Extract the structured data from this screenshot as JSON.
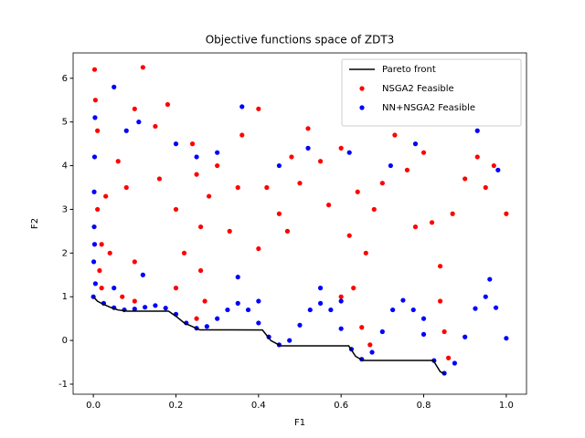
{
  "chart_data": {
    "type": "scatter",
    "title": "Objective functions space of ZDT3",
    "x_label": "F1",
    "y_label": "F2",
    "xlim": [
      -0.049,
      1.049
    ],
    "ylim": [
      -1.23,
      6.58
    ],
    "xticks": [
      {
        "value": 0,
        "label": "0.0"
      },
      0.2,
      0.4,
      0.6,
      0.8,
      {
        "value": 1,
        "label": "1.0"
      }
    ],
    "yticks": [
      -1,
      0,
      1,
      2,
      3,
      4,
      5,
      6
    ],
    "legend": "upper right",
    "line": {
      "name": "Pareto front",
      "color": "#000000",
      "x": [
        0,
        0.01,
        0.02,
        0.04,
        0.06,
        0.083,
        0.1822,
        0.2,
        0.22,
        0.2578,
        0.4094,
        0.43,
        0.4539,
        0.6184,
        0.635,
        0.6525,
        0.8233,
        0.84,
        0.8518
      ],
      "y": [
        1,
        0.897,
        0.847,
        0.762,
        0.698,
        0.67,
        0.67,
        0.553,
        0.402,
        0.242,
        0.241,
        -0.004,
        -0.124,
        -0.124,
        -0.363,
        -0.458,
        -0.457,
        -0.715,
        -0.773
      ]
    },
    "series": [
      {
        "name": "NSGA2 Feasible",
        "color": "#ff0000",
        "x": [
          0.003,
          0.005,
          0.01,
          0.01,
          0.02,
          0.015,
          0.03,
          0.04,
          0.06,
          0.08,
          0.1,
          0.12,
          0.1,
          0.15,
          0.18,
          0.2,
          0.22,
          0.24,
          0.25,
          0.26,
          0.26,
          0.27,
          0.25,
          0.28,
          0.2,
          0.3,
          0.33,
          0.36,
          0.4,
          0.42,
          0.45,
          0.48,
          0.5,
          0.52,
          0.55,
          0.57,
          0.6,
          0.62,
          0.63,
          0.65,
          0.66,
          0.64,
          0.67,
          0.7,
          0.73,
          0.76,
          0.78,
          0.8,
          0.82,
          0.84,
          0.85,
          0.86,
          0.87,
          0.9,
          0.93,
          0.95,
          0.97,
          1.0,
          0.84,
          0.6,
          0.4,
          0.16,
          0.35,
          0.02,
          0.07,
          0.1,
          0.47,
          0.68
        ],
        "y": [
          6.2,
          5.5,
          4.8,
          3.0,
          2.2,
          1.6,
          3.3,
          2.0,
          4.1,
          3.5,
          1.8,
          6.25,
          5.3,
          4.9,
          5.4,
          3.0,
          2.0,
          4.5,
          3.8,
          2.6,
          1.6,
          0.9,
          0.5,
          3.3,
          1.2,
          4.0,
          2.5,
          4.7,
          5.3,
          3.5,
          2.9,
          4.2,
          3.6,
          4.85,
          4.1,
          3.1,
          4.4,
          2.4,
          1.2,
          0.3,
          2.0,
          3.4,
          -0.1,
          3.6,
          4.7,
          3.9,
          2.6,
          4.3,
          2.7,
          1.7,
          0.2,
          -0.4,
          2.9,
          3.7,
          4.2,
          3.5,
          4.0,
          2.9,
          0.9,
          1.0,
          2.1,
          3.7,
          3.5,
          1.2,
          1.0,
          0.9,
          2.5,
          3.0
        ]
      },
      {
        "name": "NN+NSGA2 Feasible",
        "color": "#0000ff",
        "x": [
          0,
          0.001,
          0.002,
          0.002,
          0.003,
          0.004,
          0.005,
          0.003,
          0.025,
          0.05,
          0.075,
          0.1,
          0.125,
          0.15,
          0.175,
          0.2,
          0.225,
          0.25,
          0.275,
          0.3,
          0.325,
          0.35,
          0.375,
          0.4,
          0.425,
          0.45,
          0.475,
          0.5,
          0.525,
          0.55,
          0.575,
          0.6,
          0.625,
          0.65,
          0.675,
          0.7,
          0.725,
          0.75,
          0.775,
          0.8,
          0.825,
          0.85,
          0.875,
          0.9,
          0.925,
          0.95,
          0.975,
          1.0,
          0.35,
          0.55,
          0.12,
          0.08,
          0.05,
          0.11,
          0.36,
          0.52,
          0.62,
          0.78,
          0.93,
          0.98,
          0.3,
          0.45,
          0.2,
          0.25,
          0.72,
          0.05,
          0.6,
          0.96,
          0.4,
          0.8
        ],
        "y": [
          1.0,
          1.8,
          2.6,
          3.4,
          4.2,
          5.1,
          1.3,
          2.2,
          0.85,
          0.75,
          0.7,
          0.72,
          0.76,
          0.8,
          0.74,
          0.6,
          0.4,
          0.28,
          0.32,
          0.5,
          0.7,
          0.85,
          0.7,
          0.4,
          0.08,
          -0.1,
          0.0,
          0.35,
          0.7,
          0.85,
          0.7,
          0.27,
          -0.2,
          -0.43,
          -0.27,
          0.2,
          0.7,
          0.92,
          0.7,
          0.14,
          -0.46,
          -0.75,
          -0.52,
          0.08,
          0.73,
          1.0,
          0.75,
          0.05,
          1.45,
          1.2,
          1.5,
          4.8,
          5.8,
          5.0,
          5.35,
          4.4,
          4.3,
          4.5,
          4.8,
          3.9,
          4.3,
          4.0,
          4.5,
          4.2,
          4.0,
          1.2,
          0.9,
          1.4,
          0.9,
          0.5
        ]
      }
    ]
  }
}
